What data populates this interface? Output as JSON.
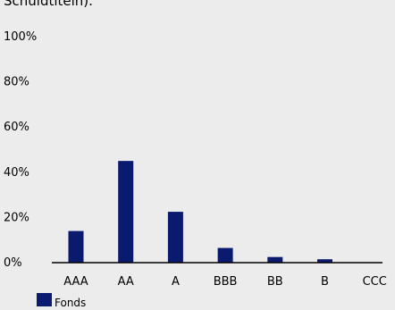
{
  "chart_data": {
    "type": "bar",
    "title": "Schuldtiteln).",
    "categories": [
      "AAA",
      "AA",
      "A",
      "BBB",
      "BB",
      "B",
      "CCC"
    ],
    "series": [
      {
        "name": "Fonds",
        "values": [
          14,
          45,
          22.5,
          6.5,
          2.5,
          1.5,
          0
        ]
      }
    ],
    "ylim": [
      0,
      100
    ],
    "yticks": [
      0,
      20,
      40,
      60,
      80,
      100
    ],
    "ytick_labels": [
      "0%",
      "20%",
      "40%",
      "60%",
      "80%",
      "100%"
    ],
    "xlabel": "",
    "ylabel": "",
    "grid": false,
    "legend_position": "bottom-left",
    "colors": {
      "series": "#0a1a6e",
      "background": "#ececec",
      "axis": "#000000"
    }
  }
}
